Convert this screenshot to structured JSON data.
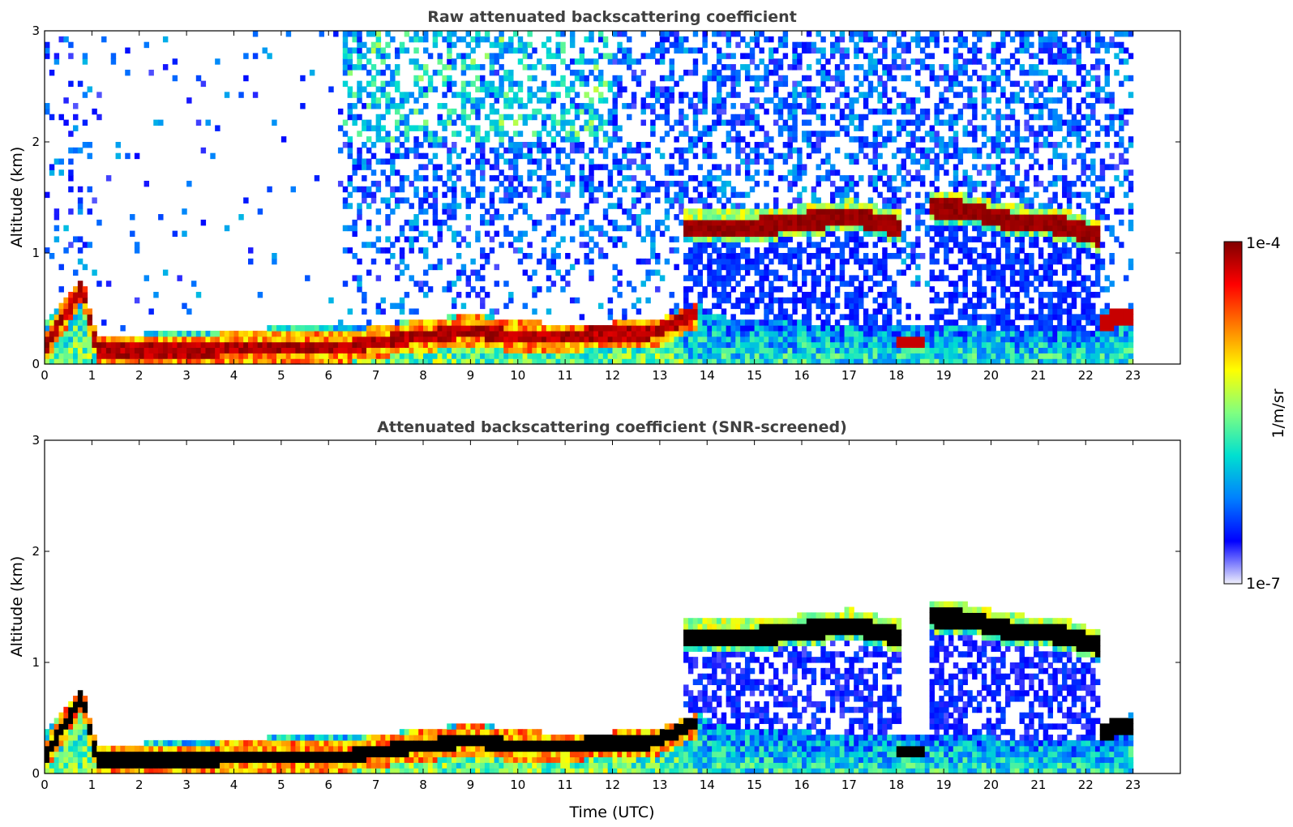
{
  "chart_data": [
    {
      "type": "heatmap",
      "title": "Raw attenuated backscattering coefficient",
      "xlabel": "",
      "ylabel": "Altitude (km)",
      "xticks": [
        "0",
        "1",
        "2",
        "3",
        "4",
        "5",
        "6",
        "7",
        "8",
        "9",
        "10",
        "11",
        "12",
        "13",
        "14",
        "15",
        "16",
        "17",
        "18",
        "19",
        "20",
        "21",
        "22",
        "23"
      ],
      "yticks": [
        "0",
        "1",
        "2",
        "3"
      ],
      "xlim": [
        0,
        24
      ],
      "ylim": [
        0,
        3
      ],
      "grid": false,
      "data_end_hour": 23,
      "features": {
        "surface_layer_top_km": [
          [
            0,
            0.35
          ],
          [
            0.8,
            0.8
          ],
          [
            1.1,
            0.25
          ],
          [
            3,
            0.3
          ],
          [
            6.3,
            0.35
          ],
          [
            7,
            0.35
          ],
          [
            9,
            0.45
          ],
          [
            11,
            0.35
          ],
          [
            13,
            0.4
          ],
          [
            13.8,
            0.55
          ],
          [
            14.5,
            0.4
          ],
          [
            18,
            0.35
          ],
          [
            22.3,
            0.3
          ],
          [
            23,
            0.55
          ]
        ],
        "dense_layer_km": [
          [
            0,
            0.15
          ],
          [
            0.8,
            0.7
          ],
          [
            1.1,
            0.12
          ],
          [
            6.3,
            0.15
          ],
          [
            7,
            0.2
          ],
          [
            9,
            0.3
          ],
          [
            10,
            0.25
          ],
          [
            12.8,
            0.28
          ],
          [
            13.7,
            0.45
          ]
        ],
        "cloud_base_km": [
          [
            13.5,
            1.2
          ],
          [
            15,
            1.2
          ],
          [
            16,
            1.25
          ],
          [
            17,
            1.3
          ],
          [
            18.1,
            1.2
          ],
          [
            18.7,
            1.38
          ],
          [
            19.5,
            1.35
          ],
          [
            20.5,
            1.25
          ],
          [
            21.5,
            1.22
          ],
          [
            22.2,
            1.12
          ]
        ],
        "low_cloud_km": [
          [
            18.1,
            0.22
          ],
          [
            18.6,
            0.22
          ],
          [
            22.4,
            0.4
          ],
          [
            23,
            0.45
          ]
        ]
      }
    },
    {
      "type": "heatmap",
      "title": "Attenuated backscattering coefficient (SNR-screened)",
      "xlabel": "Time (UTC)",
      "ylabel": "Altitude (km)",
      "xticks": [
        "0",
        "1",
        "2",
        "3",
        "4",
        "5",
        "6",
        "7",
        "8",
        "9",
        "10",
        "11",
        "12",
        "13",
        "14",
        "15",
        "16",
        "17",
        "18",
        "19",
        "20",
        "21",
        "22",
        "23"
      ],
      "yticks": [
        "0",
        "1",
        "2",
        "3"
      ],
      "xlim": [
        0,
        24
      ],
      "ylim": [
        0,
        3
      ],
      "grid": false,
      "data_end_hour": 23
    }
  ],
  "colorbar": {
    "max_label": "1e-4",
    "min_label": "1e-7",
    "unit_label": "1/m/sr",
    "scale": "log",
    "range": [
      1e-07,
      0.0001
    ],
    "colormap": "jet",
    "colors": [
      "#f0f0fb",
      "#0000ff",
      "#0080ff",
      "#00e0d0",
      "#80ff80",
      "#ffff00",
      "#ff8000",
      "#ff0000",
      "#800000"
    ]
  }
}
